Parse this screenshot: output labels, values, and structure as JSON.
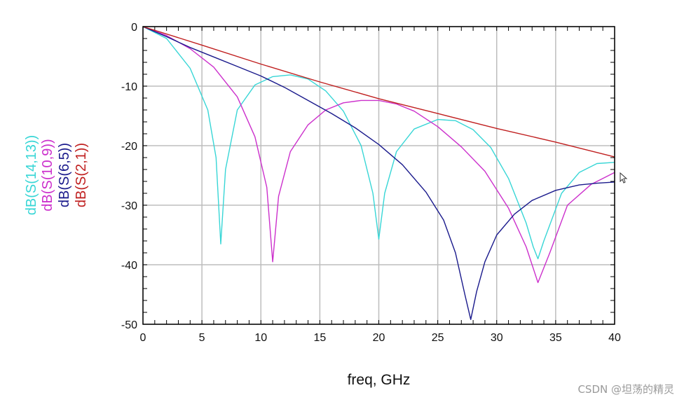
{
  "chart_data": {
    "type": "line",
    "title": "",
    "xlabel": "freq, GHz",
    "xlim": [
      0,
      40
    ],
    "ylim": [
      -50,
      0
    ],
    "xticks": [
      0,
      5,
      10,
      15,
      20,
      25,
      30,
      35,
      40
    ],
    "yticks": [
      0,
      -10,
      -20,
      -30,
      -40,
      -50
    ],
    "grid": true,
    "ylabels": [
      {
        "text": "dB(S(14,13))",
        "color": "#38d6d6"
      },
      {
        "text": "dB(S(10,9))",
        "color": "#cc30cc"
      },
      {
        "text": "dB(S(6,5))",
        "color": "#1a1a8c"
      },
      {
        "text": "dB(S(2,1))",
        "color": "#c02020"
      }
    ],
    "series": [
      {
        "name": "dB(S(14,13))",
        "color": "#38d6d6",
        "x": [
          0,
          2,
          4,
          5.5,
          6.2,
          6.6,
          7,
          8,
          9.5,
          11,
          12.5,
          14,
          15.5,
          17,
          18.5,
          19.5,
          20,
          20.5,
          21.5,
          23,
          25,
          26.5,
          28,
          29.5,
          31,
          32.5,
          33.1,
          33.5,
          34,
          35.5,
          37,
          38.5,
          40
        ],
        "y": [
          0,
          -2,
          -7,
          -14,
          -22,
          -36.5,
          -24,
          -14,
          -9.8,
          -8.4,
          -8.1,
          -8.8,
          -10.8,
          -14.2,
          -20,
          -28,
          -35.7,
          -28,
          -21,
          -17.2,
          -15.6,
          -15.8,
          -17.3,
          -20.3,
          -25.5,
          -33,
          -37,
          -39,
          -36,
          -28,
          -24.5,
          -23,
          -22.8
        ]
      },
      {
        "name": "dB(S(10,9))",
        "color": "#cc30cc",
        "x": [
          0,
          2,
          4,
          6,
          8,
          9.5,
          10.5,
          11,
          11.5,
          12.5,
          14,
          15.5,
          17,
          18.5,
          20,
          21.5,
          23,
          25,
          27,
          29,
          31,
          32.5,
          33.5,
          34.5,
          36,
          38,
          40
        ],
        "y": [
          0,
          -1.5,
          -3.7,
          -6.8,
          -11.8,
          -18.5,
          -27,
          -39.5,
          -28.5,
          -21,
          -16.5,
          -14,
          -12.8,
          -12.4,
          -12.4,
          -13,
          -14.2,
          -16.8,
          -20.2,
          -24.3,
          -30.5,
          -37,
          -43,
          -38,
          -30,
          -26.5,
          -24.5
        ]
      },
      {
        "name": "dB(S(6,5))",
        "color": "#1a1a8c",
        "x": [
          0,
          2,
          4,
          6,
          8,
          10,
          12,
          14,
          16,
          18,
          20,
          22,
          24,
          25.5,
          26.5,
          27.3,
          27.8,
          28.3,
          29,
          30,
          31.5,
          33,
          35,
          37,
          38.5,
          40
        ],
        "y": [
          0,
          -1.7,
          -3.5,
          -5.1,
          -6.7,
          -8.3,
          -10.2,
          -12.4,
          -14.6,
          -17,
          -19.8,
          -23.2,
          -27.8,
          -32.5,
          -38,
          -45,
          -49.2,
          -44.5,
          -39.5,
          -35,
          -31.5,
          -29.2,
          -27.5,
          -26.6,
          -26.3,
          -26.1
        ]
      },
      {
        "name": "dB(S(2,1))",
        "color": "#c02020",
        "x": [
          0,
          5,
          10,
          15,
          20,
          25,
          30,
          35,
          40
        ],
        "y": [
          0,
          -3.1,
          -6.3,
          -9.3,
          -12.1,
          -14.6,
          -17.1,
          -19.4,
          -21.9
        ]
      }
    ]
  },
  "watermark": "CSDN @坦荡的精灵",
  "cursor_icon": "mouse-pointer-icon"
}
